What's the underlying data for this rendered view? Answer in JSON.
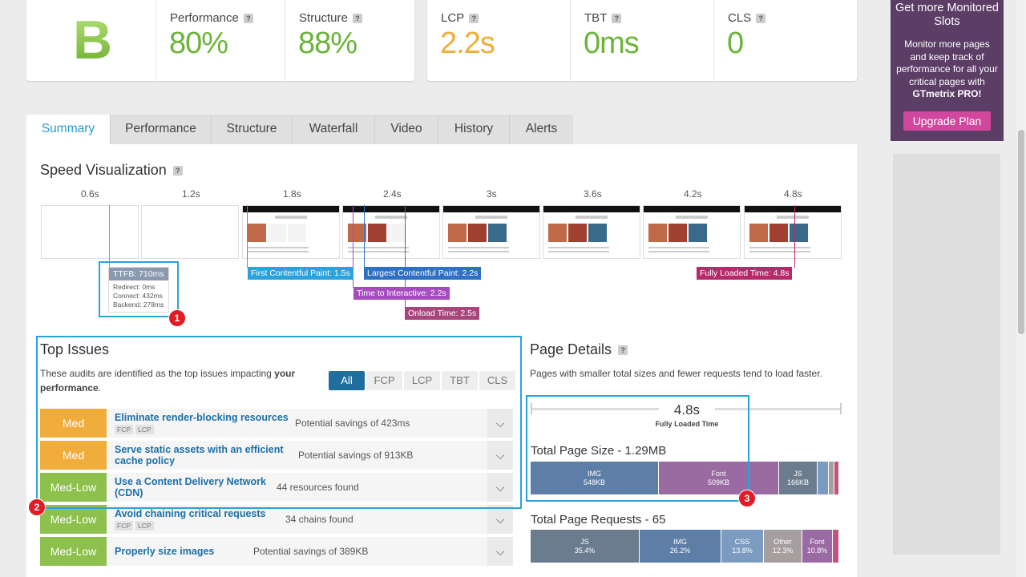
{
  "grade": "B",
  "scores": [
    {
      "label": "Performance",
      "value": "80%",
      "color": "#6bb43a"
    },
    {
      "label": "Structure",
      "value": "88%",
      "color": "#6bb43a"
    }
  ],
  "vitals": [
    {
      "label": "LCP",
      "value": "2.2s",
      "color": "#f0ad3c"
    },
    {
      "label": "TBT",
      "value": "0ms",
      "color": "#6bb43a"
    },
    {
      "label": "CLS",
      "value": "0",
      "color": "#6bb43a"
    }
  ],
  "help_mark": "?",
  "promo": {
    "title": "Get more Monitored Slots",
    "text_prefix": "Monitor more pages and keep track of performance for all your critical pages with ",
    "text_bold": "GTmetrix PRO!",
    "button": "Upgrade Plan"
  },
  "tabs": [
    "Summary",
    "Performance",
    "Structure",
    "Waterfall",
    "Video",
    "History",
    "Alerts"
  ],
  "speed": {
    "title": "Speed Visualization",
    "times": [
      "0.6s",
      "1.2s",
      "1.8s",
      "2.4s",
      "3s",
      "3.6s",
      "4.2s",
      "4.8s"
    ],
    "ttfb": {
      "label": "TTFB: 710ms",
      "redirect": "Redirect: 0ms",
      "connect": "Connect: 432ms",
      "backend": "Backend: 278ms"
    },
    "markers": {
      "fcp": "First Contentful Paint: 1.5s",
      "lcp": "Largest Contentful Paint: 2.2s",
      "tti": "Time to Interactive: 2.2s",
      "onload": "Onload Time: 2.5s",
      "fully": "Fully Loaded Time: 4.8s"
    }
  },
  "badges": [
    "1",
    "2",
    "3"
  ],
  "top_issues": {
    "title": "Top Issues",
    "desc_prefix": "These audits are identified as the top issues impacting ",
    "desc_bold1": "your",
    "desc_bold2": "performance",
    "desc_suffix": ".",
    "filters": [
      "All",
      "FCP",
      "LCP",
      "TBT",
      "CLS"
    ],
    "items": [
      {
        "severity": "Med",
        "name": "Eliminate render-blocking resources",
        "tags": [
          "FCP",
          "LCP"
        ],
        "savings": "Potential savings of 423ms"
      },
      {
        "severity": "Med",
        "name": "Serve static assets with an efficient cache policy",
        "tags": [],
        "savings": "Potential savings of 913KB"
      },
      {
        "severity": "Med-Low",
        "name": "Use a Content Delivery Network (CDN)",
        "tags": [],
        "savings": "44 resources found"
      },
      {
        "severity": "Med-Low",
        "name": "Avoid chaining critical requests",
        "tags": [
          "FCP",
          "LCP"
        ],
        "savings": "34 chains found"
      },
      {
        "severity": "Med-Low",
        "name": "Properly size images",
        "tags": [],
        "savings": "Potential savings of 389KB"
      }
    ]
  },
  "page_details": {
    "title": "Page Details",
    "desc": "Pages with smaller total sizes and fewer requests tend to load faster.",
    "fully_loaded": "4.8s",
    "fully_loaded_label": "Fully Loaded Time",
    "size_title": "Total Page Size - 1.29MB",
    "size_segments": [
      {
        "name": "IMG",
        "value": "548KB",
        "color": "#5d7ea6"
      },
      {
        "name": "Font",
        "value": "509KB",
        "color": "#9a6aa3"
      },
      {
        "name": "JS",
        "value": "166KB",
        "color": "#6b7c8f"
      }
    ],
    "requests_title": "Total Page Requests - 65",
    "request_segments": [
      {
        "name": "JS",
        "value": "35.4%",
        "color": "#6b7c8f"
      },
      {
        "name": "IMG",
        "value": "26.2%",
        "color": "#5d7ea6"
      },
      {
        "name": "CSS",
        "value": "13.8%",
        "color": "#7b9cc0"
      },
      {
        "name": "Other",
        "value": "12.3%",
        "color": "#a59fa0"
      },
      {
        "name": "Font",
        "value": "10.8%",
        "color": "#9a6aa3"
      }
    ]
  }
}
